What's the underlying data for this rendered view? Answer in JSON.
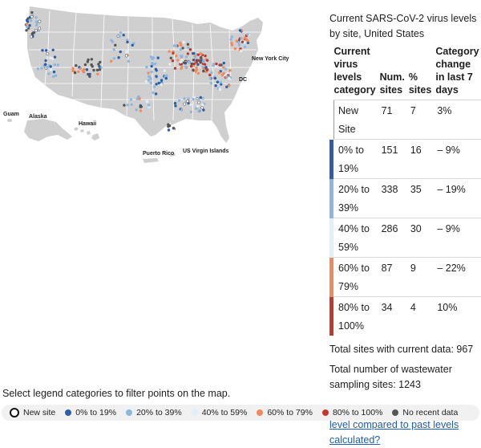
{
  "map": {
    "labels": {
      "new_york_city": "New York City",
      "dc": "DC",
      "guam": "Guam",
      "alaska": "Alaska",
      "hawaii": "Hawaii",
      "puerto_rico": "Puerto Rico",
      "us_virgin_islands": "US Virgin Islands"
    },
    "colors": {
      "land": "#cfcfcf",
      "state_border": "#ffffff",
      "new_site": "#ffffff",
      "c0_19": "#2b5fa8",
      "c20_39": "#8db7de",
      "c40_59": "#e3eef8",
      "c60_79": "#ef8a5a",
      "c80_100": "#c0392b",
      "no_recent": "#555555"
    }
  },
  "panel": {
    "title": "Current SARS-CoV-2 virus levels by site, United States",
    "headers": {
      "category": "Current virus levels category",
      "num_sites": "Num. sites",
      "pct_sites": "% sites",
      "change": "Category change in last 7 days"
    },
    "rows": [
      {
        "category": "New Site",
        "num": "71",
        "pct": "7",
        "change": "3%",
        "color": "#ffffff"
      },
      {
        "category": "0% to 19%",
        "num": "151",
        "pct": "16",
        "change": "– 9%",
        "color": "#2b5fa8"
      },
      {
        "category": "20% to 39%",
        "num": "338",
        "pct": "35",
        "change": "– 19%",
        "color": "#8db7de"
      },
      {
        "category": "40% to 59%",
        "num": "286",
        "pct": "30",
        "change": "– 9%",
        "color": "#e3eef8"
      },
      {
        "category": "60% to 79%",
        "num": "87",
        "pct": "9",
        "change": "– 22%",
        "color": "#ef8a5a"
      },
      {
        "category": "80% to 100%",
        "num": "34",
        "pct": "4",
        "change": "10%",
        "color": "#c0392b"
      }
    ],
    "total_current": "Total sites with current data: 967",
    "total_sites": "Total number of wastewater sampling sites: 1243",
    "link": "How is the current SARS-CoV-2 level compared to past levels calculated?"
  },
  "legend": {
    "caption": "Select legend categories to filter points on the map.",
    "items": [
      {
        "label": "New site",
        "color": "#ffffff",
        "icon": "hollow-circle-icon"
      },
      {
        "label": "0% to 19%",
        "color": "#2b5fa8",
        "icon": "dot-icon"
      },
      {
        "label": "20% to 39%",
        "color": "#8db7de",
        "icon": "dot-icon"
      },
      {
        "label": "40% to 59%",
        "color": "#e3eef8",
        "icon": "dot-icon"
      },
      {
        "label": "60% to 79%",
        "color": "#ef8a5a",
        "icon": "dot-icon"
      },
      {
        "label": "80% to 100%",
        "color": "#c0392b",
        "icon": "dot-icon"
      },
      {
        "label": "No recent data",
        "color": "#555555",
        "icon": "dot-icon"
      }
    ]
  }
}
